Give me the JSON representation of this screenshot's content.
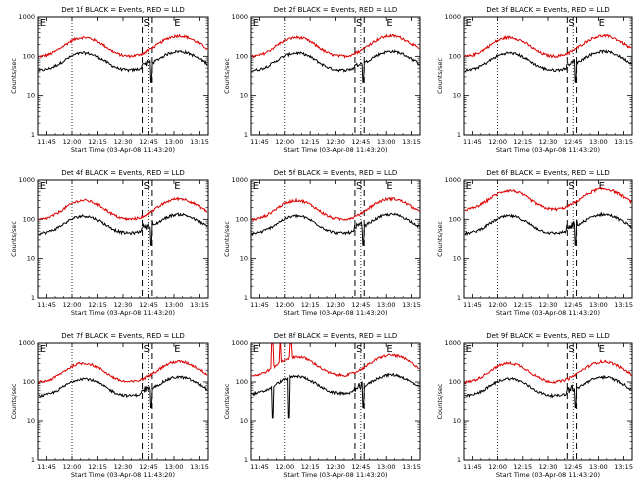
{
  "colors": {
    "events": "#000000",
    "lld": "#dd0000",
    "axis": "#000000"
  },
  "common": {
    "ylabel": "Counts/sec",
    "xlabel": "Start Time (03-Apr-08 11:43:20)",
    "xticks": [
      "11:45",
      "12:00",
      "12:15",
      "12:30",
      "12:45",
      "13:00",
      "13:15"
    ],
    "yticks": [
      "1",
      "10",
      "100",
      "1000"
    ],
    "markers": [
      "E",
      "S",
      "E"
    ]
  },
  "chart_data": [
    {
      "type": "line",
      "title": "Det 1f BLACK = Events, RED = LLD",
      "variant": "normal",
      "series": [
        {
          "name": "Events",
          "color": "#000000"
        },
        {
          "name": "LLD",
          "color": "#dd0000"
        }
      ]
    },
    {
      "type": "line",
      "title": "Det 2f BLACK = Events, RED = LLD",
      "variant": "normal",
      "series": [
        {
          "name": "Events",
          "color": "#000000"
        },
        {
          "name": "LLD",
          "color": "#dd0000"
        }
      ]
    },
    {
      "type": "line",
      "title": "Det 3f BLACK = Events, RED = LLD",
      "variant": "normal",
      "series": [
        {
          "name": "Events",
          "color": "#000000"
        },
        {
          "name": "LLD",
          "color": "#dd0000"
        }
      ]
    },
    {
      "type": "line",
      "title": "Det 4f BLACK = Events, RED = LLD",
      "variant": "normal",
      "series": [
        {
          "name": "Events",
          "color": "#000000"
        },
        {
          "name": "LLD",
          "color": "#dd0000"
        }
      ]
    },
    {
      "type": "line",
      "title": "Det 5f BLACK = Events, RED = LLD",
      "variant": "normal",
      "series": [
        {
          "name": "Events",
          "color": "#000000"
        },
        {
          "name": "LLD",
          "color": "#dd0000"
        }
      ]
    },
    {
      "type": "line",
      "title": "Det 6f BLACK = Events, RED = LLD",
      "variant": "normal",
      "series": [
        {
          "name": "Events",
          "color": "#000000"
        },
        {
          "name": "LLD",
          "color": "#dd0000"
        }
      ]
    },
    {
      "type": "line",
      "title": "Det 7f BLACK = Events, RED = LLD",
      "variant": "normal",
      "series": [
        {
          "name": "Events",
          "color": "#000000"
        },
        {
          "name": "LLD",
          "color": "#dd0000"
        }
      ]
    },
    {
      "type": "line",
      "title": "Det 8f BLACK = Events, RED = LLD",
      "variant": "det8",
      "series": [
        {
          "name": "Events",
          "color": "#000000"
        },
        {
          "name": "LLD",
          "color": "#dd0000"
        }
      ]
    },
    {
      "type": "line",
      "title": "Det 9f BLACK = Events, RED = LLD",
      "variant": "normal",
      "series": [
        {
          "name": "Events",
          "color": "#000000"
        },
        {
          "name": "LLD",
          "color": "#dd0000"
        }
      ]
    }
  ]
}
